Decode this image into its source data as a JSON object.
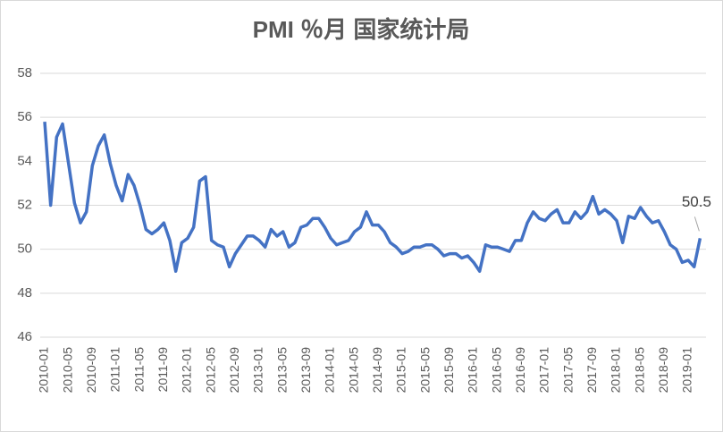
{
  "chart_data": {
    "type": "line",
    "title": "PMI ％月 国家统计局",
    "categories": [
      "2010-01",
      null,
      null,
      null,
      "2010-05",
      null,
      null,
      null,
      "2010-09",
      null,
      null,
      null,
      "2011-01",
      null,
      null,
      null,
      "2011-05",
      null,
      null,
      null,
      "2011-09",
      null,
      null,
      null,
      "2012-01",
      null,
      null,
      null,
      "2012-05",
      null,
      null,
      null,
      "2012-09",
      null,
      null,
      null,
      "2013-01",
      null,
      null,
      null,
      "2013-05",
      null,
      null,
      null,
      "2013-09",
      null,
      null,
      null,
      "2014-01",
      null,
      null,
      null,
      "2014-05",
      null,
      null,
      null,
      "2014-09",
      null,
      null,
      null,
      "2015-01",
      null,
      null,
      null,
      "2015-05",
      null,
      null,
      null,
      "2015-09",
      null,
      null,
      null,
      "2016-01",
      null,
      null,
      null,
      "2016-05",
      null,
      null,
      null,
      "2016-09",
      null,
      null,
      null,
      "2017-01",
      null,
      null,
      null,
      "2017-05",
      null,
      null,
      null,
      "2017-09",
      null,
      null,
      null,
      "2018-01",
      null,
      null,
      null,
      "2018-05",
      null,
      null,
      null,
      "2018-09",
      null,
      null,
      null,
      "2019-01",
      null,
      null
    ],
    "values": [
      55.8,
      52.0,
      55.1,
      55.7,
      53.9,
      52.1,
      51.2,
      51.7,
      53.8,
      54.7,
      55.2,
      53.9,
      52.9,
      52.2,
      53.4,
      52.9,
      52.0,
      50.9,
      50.7,
      50.9,
      51.2,
      50.4,
      49.0,
      50.3,
      50.5,
      51.0,
      53.1,
      53.3,
      50.4,
      50.2,
      50.1,
      49.2,
      49.8,
      50.2,
      50.6,
      50.6,
      50.4,
      50.1,
      50.9,
      50.6,
      50.8,
      50.1,
      50.3,
      51.0,
      51.1,
      51.4,
      51.4,
      51.0,
      50.5,
      50.2,
      50.3,
      50.4,
      50.8,
      51.0,
      51.7,
      51.1,
      51.1,
      50.8,
      50.3,
      50.1,
      49.8,
      49.9,
      50.1,
      50.1,
      50.2,
      50.2,
      50.0,
      49.7,
      49.8,
      49.8,
      49.6,
      49.7,
      49.4,
      49.0,
      50.2,
      50.1,
      50.1,
      50.0,
      49.9,
      50.4,
      50.4,
      51.2,
      51.7,
      51.4,
      51.3,
      51.6,
      51.8,
      51.2,
      51.2,
      51.7,
      51.4,
      51.7,
      52.4,
      51.6,
      51.8,
      51.6,
      51.3,
      50.3,
      51.5,
      51.4,
      51.9,
      51.5,
      51.2,
      51.3,
      50.8,
      50.2,
      50.0,
      49.4,
      49.5,
      49.2,
      50.5
    ],
    "color": "#4472c4",
    "ylim": [
      46,
      58
    ],
    "yticks": [
      46,
      48,
      50,
      52,
      54,
      56,
      58
    ],
    "grid": true
  }
}
